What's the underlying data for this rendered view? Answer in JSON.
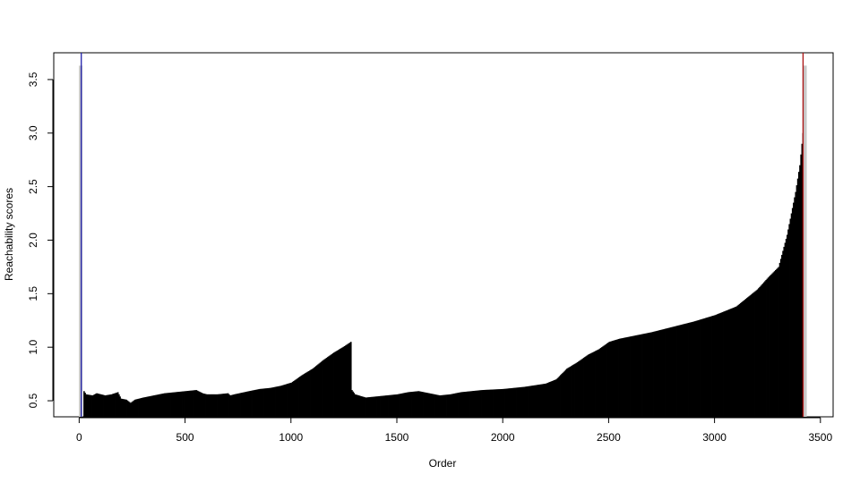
{
  "chart_data": {
    "type": "bar",
    "title": "",
    "xlabel": "Order",
    "ylabel": "Reachability scores",
    "xlim": [
      -120,
      3560
    ],
    "ylim": [
      0.35,
      3.75
    ],
    "grid": false,
    "x_ticks": [
      {
        "value": 0,
        "label": "0"
      },
      {
        "value": 500,
        "label": "500"
      },
      {
        "value": 1000,
        "label": "1000"
      },
      {
        "value": 1500,
        "label": "1500"
      },
      {
        "value": 2000,
        "label": "2000"
      },
      {
        "value": 2500,
        "label": "2500"
      },
      {
        "value": 3000,
        "label": "3000"
      },
      {
        "value": 3500,
        "label": "3500"
      }
    ],
    "y_ticks": [
      {
        "value": 0.5,
        "label": "0.5"
      },
      {
        "value": 1.0,
        "label": "1.0"
      },
      {
        "value": 1.5,
        "label": "1.5"
      },
      {
        "value": 2.0,
        "label": "2.0"
      },
      {
        "value": 2.5,
        "label": "2.5"
      },
      {
        "value": 3.0,
        "label": "3.0"
      },
      {
        "value": 3.5,
        "label": "3.5"
      }
    ],
    "reachability_profile": [
      [
        20,
        0.59
      ],
      [
        30,
        0.56
      ],
      [
        60,
        0.55
      ],
      [
        80,
        0.57
      ],
      [
        100,
        0.56
      ],
      [
        120,
        0.55
      ],
      [
        150,
        0.56
      ],
      [
        180,
        0.58
      ],
      [
        195,
        0.52
      ],
      [
        220,
        0.51
      ],
      [
        240,
        0.48
      ],
      [
        260,
        0.51
      ],
      [
        300,
        0.53
      ],
      [
        350,
        0.55
      ],
      [
        400,
        0.57
      ],
      [
        450,
        0.58
      ],
      [
        500,
        0.59
      ],
      [
        550,
        0.6
      ],
      [
        580,
        0.57
      ],
      [
        600,
        0.56
      ],
      [
        650,
        0.56
      ],
      [
        700,
        0.57
      ],
      [
        710,
        0.55
      ],
      [
        730,
        0.56
      ],
      [
        800,
        0.59
      ],
      [
        850,
        0.61
      ],
      [
        900,
        0.62
      ],
      [
        950,
        0.64
      ],
      [
        1000,
        0.67
      ],
      [
        1050,
        0.74
      ],
      [
        1100,
        0.8
      ],
      [
        1150,
        0.88
      ],
      [
        1200,
        0.95
      ],
      [
        1250,
        1.01
      ],
      [
        1280,
        1.05
      ],
      [
        1285,
        0.6
      ],
      [
        1300,
        0.56
      ],
      [
        1350,
        0.53
      ],
      [
        1400,
        0.54
      ],
      [
        1450,
        0.55
      ],
      [
        1500,
        0.56
      ],
      [
        1550,
        0.58
      ],
      [
        1600,
        0.59
      ],
      [
        1650,
        0.57
      ],
      [
        1700,
        0.55
      ],
      [
        1750,
        0.56
      ],
      [
        1800,
        0.58
      ],
      [
        1900,
        0.6
      ],
      [
        2000,
        0.61
      ],
      [
        2100,
        0.63
      ],
      [
        2200,
        0.66
      ],
      [
        2250,
        0.7
      ],
      [
        2300,
        0.8
      ],
      [
        2350,
        0.86
      ],
      [
        2400,
        0.93
      ],
      [
        2450,
        0.98
      ],
      [
        2500,
        1.05
      ],
      [
        2550,
        1.08
      ],
      [
        2600,
        1.1
      ],
      [
        2650,
        1.12
      ],
      [
        2700,
        1.14
      ],
      [
        2800,
        1.19
      ],
      [
        2900,
        1.24
      ],
      [
        3000,
        1.3
      ],
      [
        3050,
        1.34
      ],
      [
        3100,
        1.38
      ],
      [
        3150,
        1.46
      ],
      [
        3200,
        1.54
      ],
      [
        3250,
        1.65
      ],
      [
        3300,
        1.75
      ],
      [
        3320,
        1.9
      ],
      [
        3340,
        2.05
      ],
      [
        3360,
        2.25
      ],
      [
        3380,
        2.45
      ],
      [
        3400,
        2.7
      ],
      [
        3410,
        2.9
      ],
      [
        3415,
        3.0
      ]
    ],
    "markers": [
      {
        "name": "start",
        "x": 10,
        "color": "#1f1faa"
      },
      {
        "name": "end",
        "x": 3418,
        "color": "#aa1111"
      }
    ],
    "bars_light": [
      {
        "x": 5,
        "value": 3.63,
        "color": "#c9c9c9"
      },
      {
        "x": 3425,
        "value": 3.63,
        "color": "#c9c9c9"
      }
    ],
    "fill_color": "#000000"
  }
}
